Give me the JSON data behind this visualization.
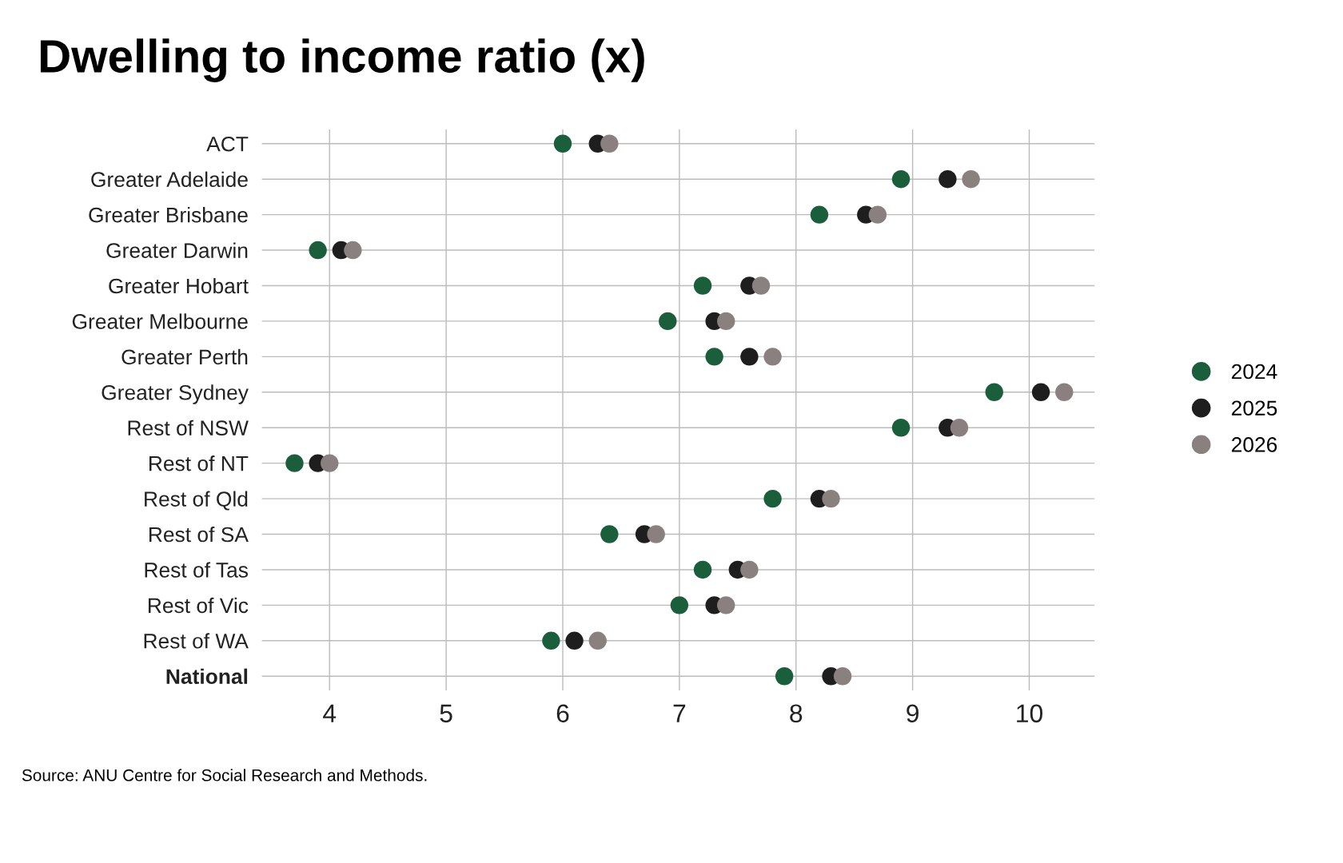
{
  "chart_data": {
    "type": "scatter",
    "orientation": "horizontal",
    "title": "Dwelling to income ratio (x)",
    "categories": [
      "ACT",
      "Greater Adelaide",
      "Greater Brisbane",
      "Greater Darwin",
      "Greater Hobart",
      "Greater Melbourne",
      "Greater Perth",
      "Greater Sydney",
      "Rest of NSW",
      "Rest of NT",
      "Rest of Qld",
      "Rest of SA",
      "Rest of Tas",
      "Rest of Vic",
      "Rest of WA",
      "National"
    ],
    "series": [
      {
        "name": "2024",
        "color": "#1b5e3b",
        "values": [
          6.0,
          8.9,
          8.2,
          3.9,
          7.2,
          6.9,
          7.3,
          9.7,
          8.9,
          3.7,
          7.8,
          6.4,
          7.2,
          7.0,
          5.9,
          7.9
        ]
      },
      {
        "name": "2025",
        "color": "#1e1e1e",
        "values": [
          6.3,
          9.3,
          8.6,
          4.1,
          7.6,
          7.3,
          7.6,
          10.1,
          9.3,
          3.9,
          8.2,
          6.7,
          7.5,
          7.3,
          6.1,
          8.3
        ]
      },
      {
        "name": "2026",
        "color": "#8a8080",
        "values": [
          6.4,
          9.5,
          8.7,
          4.2,
          7.7,
          7.4,
          7.8,
          10.3,
          9.4,
          4.0,
          8.3,
          6.8,
          7.6,
          7.4,
          6.3,
          8.4
        ]
      }
    ],
    "xlim": [
      3.42,
      10.56
    ],
    "xticks": [
      4,
      5,
      6,
      7,
      8,
      9,
      10
    ],
    "grid": true,
    "legend": "right",
    "marker": "circle",
    "annotations": [
      "Source: ANU Centre for Social Research and Methods."
    ]
  }
}
